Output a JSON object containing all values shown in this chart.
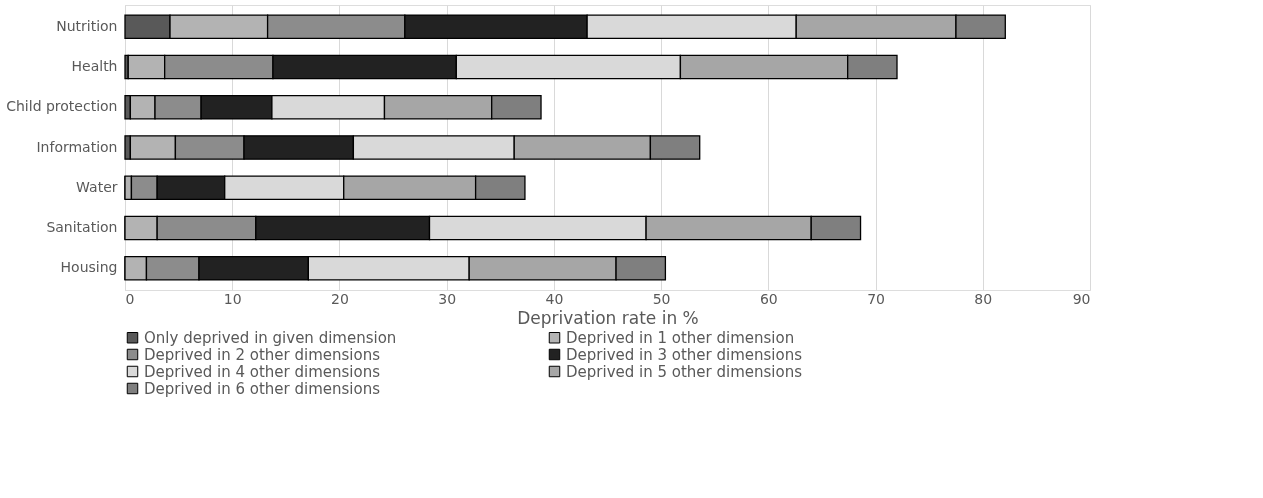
{
  "chart_data": {
    "type": "bar",
    "orientation": "horizontal",
    "stacked": true,
    "xlabel": "Deprivation rate in %",
    "categories": [
      "Nutrition",
      "Health",
      "Child protection",
      "Information",
      "Water",
      "Sanitation",
      "Housing"
    ],
    "series": [
      {
        "name": "Only deprived in given dimension",
        "color": "#595959",
        "values": [
          4.2,
          0.3,
          0.5,
          0.5,
          0,
          0,
          0
        ]
      },
      {
        "name": "Deprived in 1 other dimension",
        "color": "#b3b3b3",
        "values": [
          9.1,
          3.4,
          2.3,
          4.2,
          0.6,
          3.0,
          2.0
        ]
      },
      {
        "name": "Deprived in 2 other dimensions",
        "color": "#8c8c8c",
        "values": [
          12.8,
          10.1,
          4.3,
          6.4,
          2.4,
          9.2,
          4.9
        ]
      },
      {
        "name": "Deprived in 3 other dimensions",
        "color": "#222222",
        "values": [
          17.0,
          17.1,
          6.6,
          10.2,
          6.3,
          16.2,
          10.2
        ]
      },
      {
        "name": "Deprived in 4 other dimensions",
        "color": "#d9d9d9",
        "values": [
          19.5,
          20.9,
          10.5,
          15.0,
          11.1,
          20.2,
          15.0
        ]
      },
      {
        "name": "Deprived in 5 other dimensions",
        "color": "#a6a6a6",
        "values": [
          14.9,
          15.6,
          10.0,
          12.7,
          12.3,
          15.4,
          13.7
        ]
      },
      {
        "name": "Deprived in 6 other dimensions",
        "color": "#7f7f7f",
        "values": [
          4.6,
          4.6,
          4.6,
          4.6,
          4.6,
          4.6,
          4.6
        ]
      }
    ],
    "xlim": [
      0,
      90
    ],
    "xticks": [
      0,
      10,
      20,
      30,
      40,
      50,
      60,
      70,
      80,
      90
    ],
    "grid": "x",
    "legend": "bottom"
  }
}
